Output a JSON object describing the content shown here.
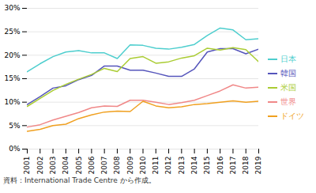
{
  "chart_data": {
    "type": "line",
    "x": [
      2001,
      2002,
      2003,
      2004,
      2005,
      2006,
      2007,
      2008,
      2009,
      2010,
      2011,
      2012,
      2013,
      2014,
      2015,
      2016,
      2017,
      2018,
      2019
    ],
    "series": [
      {
        "name": "日本",
        "color": "#4ecece",
        "values": [
          16.5,
          18.2,
          19.7,
          20.7,
          21.0,
          20.5,
          20.5,
          19.3,
          22.2,
          22.1,
          21.5,
          21.3,
          21.7,
          22.3,
          24.2,
          25.8,
          25.4,
          23.3,
          23.5
        ]
      },
      {
        "name": "韓国",
        "color": "#5555bb",
        "values": [
          9.5,
          11.2,
          13.0,
          13.5,
          14.8,
          15.7,
          17.7,
          17.7,
          16.8,
          16.8,
          16.2,
          15.5,
          15.5,
          17.1,
          20.7,
          21.4,
          21.4,
          20.3,
          21.3
        ]
      },
      {
        "name": "米国",
        "color": "#aacc33",
        "values": [
          9.1,
          10.8,
          12.5,
          13.8,
          14.9,
          15.9,
          17.2,
          16.5,
          19.3,
          19.7,
          18.3,
          18.6,
          19.4,
          19.9,
          21.5,
          21.1,
          21.6,
          21.2,
          18.6
        ]
      },
      {
        "name": "世界",
        "color": "#f08888",
        "values": [
          4.7,
          5.2,
          6.2,
          7.0,
          7.8,
          8.8,
          9.2,
          9.1,
          10.4,
          10.4,
          10.0,
          9.5,
          9.9,
          10.4,
          11.4,
          12.4,
          13.7,
          13.0,
          13.2
        ]
      },
      {
        "name": "ドイツ",
        "color": "#f0a020",
        "values": [
          3.8,
          4.2,
          5.0,
          5.3,
          6.5,
          7.3,
          7.9,
          8.1,
          8.0,
          10.2,
          9.2,
          8.8,
          9.0,
          9.5,
          9.7,
          10.0,
          10.3,
          10.0,
          10.2
        ]
      }
    ],
    "xlim": [
      2001,
      2019
    ],
    "xticks": [
      2001,
      2002,
      2003,
      2004,
      2005,
      2006,
      2007,
      2008,
      2009,
      2010,
      2011,
      2012,
      2013,
      2014,
      2015,
      2016,
      2017,
      2018,
      2019
    ],
    "ylim": [
      0,
      30
    ],
    "yticks": [
      {
        "value": 0,
        "label": "0%"
      },
      {
        "value": 5,
        "label": "5%"
      },
      {
        "value": 10,
        "label": "10%"
      },
      {
        "value": 15,
        "label": "15%"
      },
      {
        "value": 20,
        "label": "20%"
      },
      {
        "value": 25,
        "label": "25%"
      },
      {
        "value": 30,
        "label": "30%"
      }
    ],
    "grid": true,
    "legend": "right",
    "caption": "資料：International Trade Centre から作成。"
  }
}
